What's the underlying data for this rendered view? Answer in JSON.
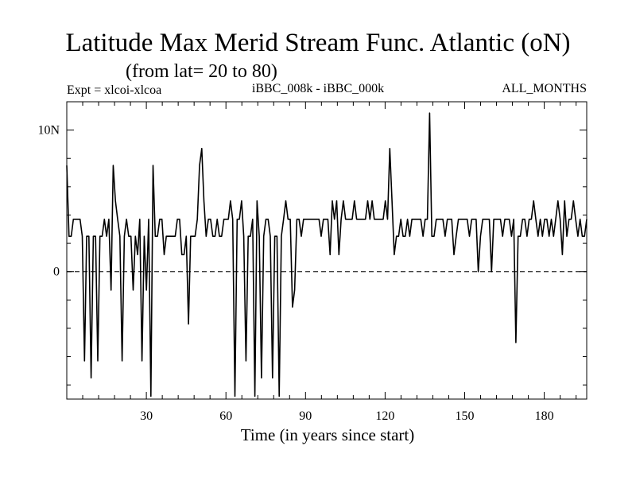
{
  "chart_data": {
    "type": "line",
    "title": "Latitude Max Merid Stream Func. Atlantic (oN)",
    "subtitle": "(from lat= 20 to 80)",
    "expt_label": "Expt = xlcoi-xlcoa",
    "experiment": "iBBC_008k - iBBC_000k",
    "months": "ALL_MONTHS",
    "xlabel": "Time (in years since start)",
    "ylabel": "",
    "xlim": [
      0,
      196
    ],
    "ylim": [
      -9,
      12
    ],
    "x_ticks": [
      30,
      60,
      90,
      120,
      150,
      180
    ],
    "x_tick_labels": [
      "30",
      "60",
      "90",
      "120",
      "150",
      "180"
    ],
    "y_ticks": [
      0,
      10
    ],
    "y_tick_labels": [
      "0",
      "10N"
    ],
    "zero_line": "dashed",
    "grid": false,
    "series": [
      {
        "values": [
          7.5,
          2.5,
          2.5,
          3.7,
          3.7,
          3.7,
          3.7,
          2.5,
          -6.3,
          2.5,
          2.5,
          -7.5,
          2.5,
          2.5,
          -6.3,
          2.5,
          2.5,
          3.7,
          2.5,
          3.7,
          -1.3,
          7.5,
          5,
          3.7,
          2.5,
          -6.3,
          2.5,
          3.7,
          2.5,
          2.5,
          -1.3,
          2.5,
          1.2,
          3.7,
          -6.3,
          2.5,
          -1.3,
          3.7,
          -8.8,
          7.5,
          2.5,
          2.5,
          3.7,
          3.7,
          1.2,
          2.5,
          2.5,
          2.5,
          2.5,
          2.5,
          3.7,
          3.7,
          1.2,
          1.2,
          2.5,
          -3.7,
          2.5,
          2.5,
          2.5,
          3.7,
          7.5,
          8.7,
          5,
          2.5,
          3.7,
          3.7,
          2.5,
          2.5,
          3.7,
          2.5,
          2.5,
          3.7,
          3.7,
          3.7,
          5,
          3.7,
          -8.8,
          3.7,
          3.7,
          5,
          2.5,
          -6.3,
          2.5,
          2.5,
          3.7,
          -8.8,
          5,
          2.5,
          -7.5,
          2.5,
          3.7,
          3.7,
          2.5,
          -7.5,
          2.5,
          2.5,
          -8.8,
          2.5,
          3.7,
          5,
          3.7,
          3.7,
          -2.5,
          -1.3,
          3.7,
          3.7,
          2.5,
          3.7,
          3.7,
          3.7,
          3.7,
          3.7,
          3.7,
          3.7,
          3.7,
          2.5,
          3.7,
          3.7,
          3.7,
          1.2,
          5,
          3.7,
          5,
          1.2,
          3.7,
          5,
          3.7,
          3.7,
          3.7,
          3.7,
          5,
          3.7,
          3.7,
          3.7,
          3.7,
          3.7,
          5,
          3.7,
          5,
          3.7,
          3.7,
          3.7,
          3.7,
          3.7,
          5,
          3.7,
          8.7,
          5,
          1.2,
          2.5,
          2.5,
          3.7,
          2.5,
          2.5,
          3.7,
          2.5,
          3.7,
          3.7,
          3.7,
          3.7,
          3.7,
          2.5,
          3.7,
          3.7,
          11.2,
          2.5,
          2.5,
          3.7,
          3.7,
          3.7,
          3.7,
          2.5,
          3.7,
          3.7,
          3.7,
          1.2,
          2.5,
          3.7,
          3.7,
          3.7,
          3.7,
          3.7,
          2.5,
          3.7,
          3.7,
          3.7,
          0,
          2.5,
          3.7,
          3.7,
          3.7,
          3.7,
          0,
          3.7,
          3.7,
          3.7,
          3.7,
          2.5,
          3.7,
          3.7,
          3.7,
          2.5,
          3.7,
          -5,
          2.5,
          2.5,
          3.7,
          3.7,
          2.5,
          3.7,
          3.7,
          5,
          3.7,
          2.5,
          3.7,
          2.5,
          3.7,
          3.7,
          2.5,
          3.7,
          2.5,
          3.7,
          5,
          3.7,
          1.2,
          5,
          2.5,
          3.7,
          3.7,
          5,
          3.7,
          2.5,
          3.7,
          2.5,
          2.5,
          3.7
        ]
      }
    ]
  }
}
